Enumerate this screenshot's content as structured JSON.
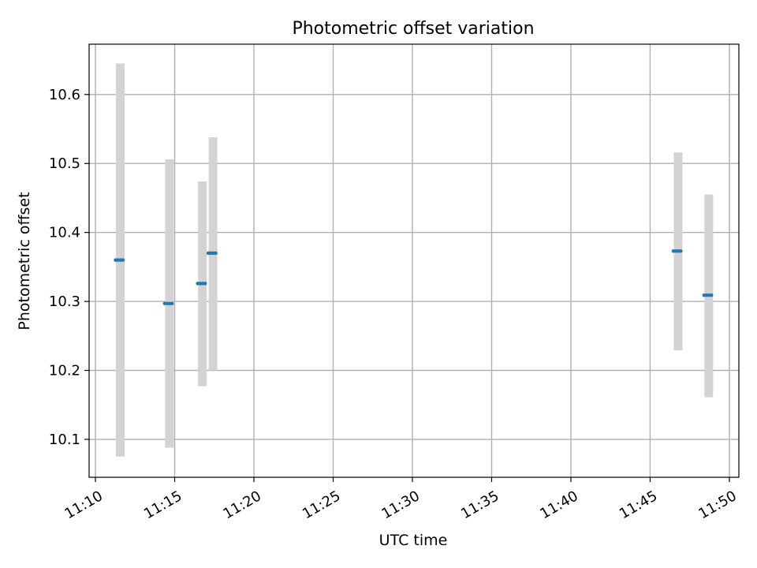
{
  "chart_data": {
    "type": "scatter",
    "title": "Photometric offset variation",
    "xlabel": "UTC time",
    "ylabel": "Photometric offset",
    "x_ticks": [
      "11:10",
      "11:15",
      "11:20",
      "11:25",
      "11:30",
      "11:35",
      "11:40",
      "11:45",
      "11:50"
    ],
    "x_tick_minutes": [
      0,
      5,
      10,
      15,
      20,
      25,
      30,
      35,
      40
    ],
    "y_ticks": [
      "10.1",
      "10.2",
      "10.3",
      "10.4",
      "10.5",
      "10.6"
    ],
    "y_tick_values": [
      10.1,
      10.2,
      10.3,
      10.4,
      10.5,
      10.6
    ],
    "xlim_minutes_after_1110": [
      -0.4,
      40.6
    ],
    "ylim": [
      10.045,
      10.673
    ],
    "grid": true,
    "x_axis_offset_minutes_note_label": "11:10",
    "series": [
      {
        "points": [
          {
            "time": "11:11:34",
            "value": 10.36,
            "low": 10.075,
            "high": 10.645
          },
          {
            "time": "11:14:40",
            "value": 10.297,
            "low": 10.088,
            "high": 10.506
          },
          {
            "time": "11:16:45",
            "value": 10.326,
            "low": 10.177,
            "high": 10.474
          },
          {
            "time": "11:17:25",
            "value": 10.37,
            "low": 10.2,
            "high": 10.538
          },
          {
            "time": "11:46:46",
            "value": 10.373,
            "low": 10.229,
            "high": 10.516
          },
          {
            "time": "11:48:42",
            "value": 10.309,
            "low": 10.161,
            "high": 10.455
          }
        ],
        "point_color": "#1f77b4",
        "band_color": "#d3d3d3"
      }
    ]
  }
}
